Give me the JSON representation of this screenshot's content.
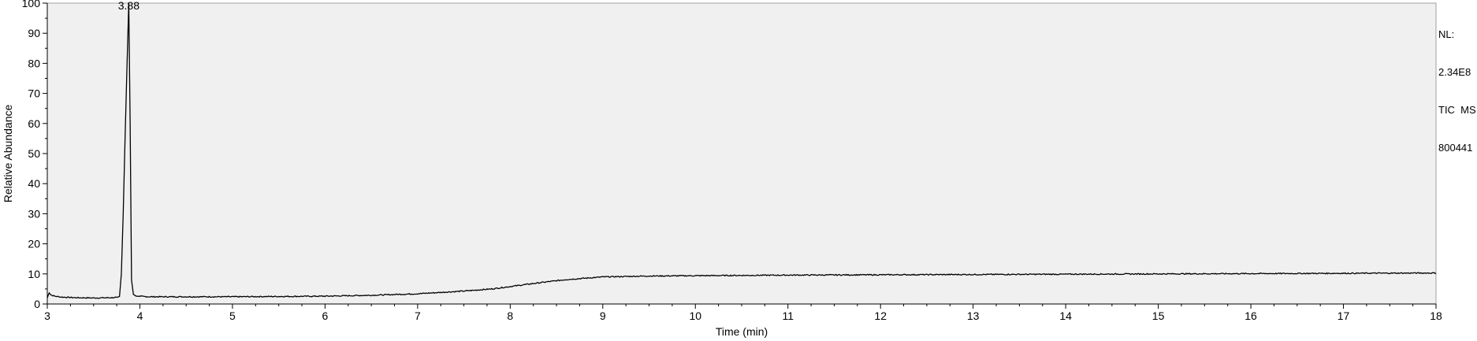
{
  "chart_data": {
    "type": "line",
    "title": "",
    "xlabel": "Time (min)",
    "ylabel": "Relative Abundance",
    "xlim": [
      3,
      18
    ],
    "ylim": [
      0,
      100
    ],
    "x_ticks": [
      3,
      4,
      5,
      6,
      7,
      8,
      9,
      10,
      11,
      12,
      13,
      14,
      15,
      16,
      17,
      18
    ],
    "y_ticks": [
      0,
      10,
      20,
      30,
      40,
      50,
      60,
      70,
      80,
      90,
      100
    ],
    "peak_annotation": {
      "x": 3.88,
      "y": 100,
      "label": "3.88"
    },
    "series": [
      {
        "x": [
          3.0,
          3.02,
          3.04,
          3.08,
          3.15,
          3.3,
          3.5,
          3.7,
          3.75,
          3.78,
          3.8,
          3.82,
          3.84,
          3.86,
          3.88,
          3.895,
          3.91,
          3.93,
          3.96,
          4.1,
          4.5,
          5.0,
          5.5,
          6.0,
          6.5,
          7.0,
          7.5,
          7.8,
          8.0,
          8.3,
          8.6,
          9.0,
          9.5,
          10.0,
          11.0,
          12.0,
          13.0,
          14.0,
          15.0,
          16.0,
          17.0,
          18.0
        ],
        "y": [
          2.0,
          3.8,
          3.0,
          2.6,
          2.3,
          2.1,
          2.0,
          2.1,
          2.2,
          2.5,
          10,
          30,
          55,
          78,
          100,
          60,
          8,
          3.2,
          2.6,
          2.4,
          2.4,
          2.4,
          2.5,
          2.6,
          2.9,
          3.4,
          4.3,
          5.0,
          5.8,
          7.0,
          8.1,
          9.0,
          9.3,
          9.4,
          9.6,
          9.7,
          9.8,
          9.9,
          10.0,
          10.1,
          10.2,
          10.3
        ]
      }
    ]
  },
  "info": {
    "nl_label": "NL:",
    "nl_value": "2.34E8",
    "trace": "TIC  MS",
    "sample": "800441"
  }
}
